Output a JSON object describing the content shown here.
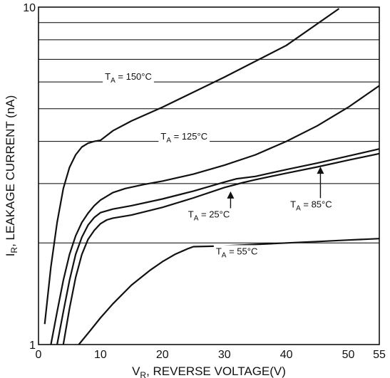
{
  "chart_data": {
    "type": "line",
    "title": "",
    "xlabel": "V_R, REVERSE VOLTAGE(V)",
    "xlabel_parts": {
      "main": "V",
      "sub": "R",
      "rest": ", REVERSE VOLTAGE(V)"
    },
    "ylabel": "I_R, LEAKAGE CURRENT (nA)",
    "ylabel_parts": {
      "main": "I",
      "sub": "R",
      "rest": ", LEAKAGE CURRENT (nA)"
    },
    "xlim": [
      0,
      55
    ],
    "ylim": [
      1,
      10
    ],
    "yscale": "log",
    "x_ticks": [
      0,
      10,
      20,
      30,
      40,
      50,
      55
    ],
    "x_tick_labels": [
      "0",
      "10",
      "20",
      "30",
      "40",
      "50",
      "55"
    ],
    "y_tick_labels": [
      {
        "value": 1,
        "label": "1"
      },
      {
        "value": 10,
        "label": "10"
      }
    ],
    "y_grid": [
      2,
      3,
      4,
      5,
      6,
      7,
      8,
      9
    ],
    "grid": true,
    "series": [
      {
        "name": "T_A = 150°C",
        "label_parts": {
          "main": "T",
          "sub": "A",
          "rest": " = 150°C"
        },
        "label_at": [
          14.5,
          6.1
        ],
        "x": [
          1,
          2,
          3,
          4,
          5,
          6,
          7,
          8,
          9,
          10,
          12,
          15,
          20,
          30,
          40,
          48.5
        ],
        "y": [
          1.15,
          1.7,
          2.3,
          2.9,
          3.35,
          3.65,
          3.85,
          3.95,
          4.0,
          4.03,
          4.3,
          4.6,
          5.05,
          6.2,
          7.7,
          9.9
        ]
      },
      {
        "name": "T_A = 125°C",
        "label_parts": {
          "main": "T",
          "sub": "A",
          "rest": " = 125°C"
        },
        "label_at": [
          23.5,
          4.05
        ],
        "x": [
          2,
          3,
          4,
          5,
          6,
          7,
          8,
          9,
          10,
          12,
          14,
          17,
          20,
          25,
          30,
          35,
          40,
          45,
          50,
          55
        ],
        "y": [
          1.0,
          1.25,
          1.55,
          1.85,
          2.1,
          2.3,
          2.45,
          2.58,
          2.68,
          2.82,
          2.9,
          2.98,
          3.05,
          3.2,
          3.4,
          3.65,
          4.0,
          4.45,
          5.05,
          5.85
        ]
      },
      {
        "name": "T_A = 25°C",
        "label_parts": {
          "main": "T",
          "sub": "A",
          "rest": " = 25°C"
        },
        "label_at": [
          27.5,
          2.38
        ],
        "arrow_from": [
          31,
          2.52
        ],
        "arrow_to": [
          31,
          2.83
        ],
        "x": [
          3,
          4,
          5,
          6,
          7,
          8,
          9,
          10,
          12,
          15,
          20,
          25,
          30,
          32,
          35,
          40,
          45,
          50,
          55
        ],
        "y": [
          1.0,
          1.25,
          1.55,
          1.85,
          2.08,
          2.26,
          2.38,
          2.46,
          2.52,
          2.58,
          2.7,
          2.85,
          3.03,
          3.1,
          3.15,
          3.3,
          3.45,
          3.62,
          3.8
        ]
      },
      {
        "name": "T_A = 85°C",
        "label_parts": {
          "main": "T",
          "sub": "A",
          "rest": " = 85°C"
        },
        "label_at": [
          44,
          2.55
        ],
        "arrow_from": [
          45.5,
          2.55
        ],
        "arrow_to": [
          45.5,
          3.35
        ],
        "x": [
          4,
          5,
          6,
          7,
          8,
          9,
          10,
          11,
          12,
          15,
          20,
          25,
          30,
          33,
          35,
          40,
          45,
          50,
          55
        ],
        "y": [
          1.0,
          1.28,
          1.58,
          1.85,
          2.05,
          2.18,
          2.28,
          2.34,
          2.37,
          2.42,
          2.55,
          2.72,
          2.92,
          3.02,
          3.08,
          3.22,
          3.36,
          3.52,
          3.68
        ]
      },
      {
        "name": "T_A = 55°C",
        "label_parts": {
          "main": "T",
          "sub": "A",
          "rest": " = 55°C"
        },
        "label_at": [
          32,
          1.85
        ],
        "x": [
          6.5,
          8,
          10,
          12,
          15,
          18,
          20,
          22,
          24,
          25,
          30,
          35,
          40,
          45,
          50,
          55
        ],
        "y": [
          1.0,
          1.08,
          1.2,
          1.32,
          1.5,
          1.66,
          1.76,
          1.85,
          1.92,
          1.95,
          1.96,
          1.98,
          2.0,
          2.02,
          2.04,
          2.06
        ]
      }
    ]
  }
}
